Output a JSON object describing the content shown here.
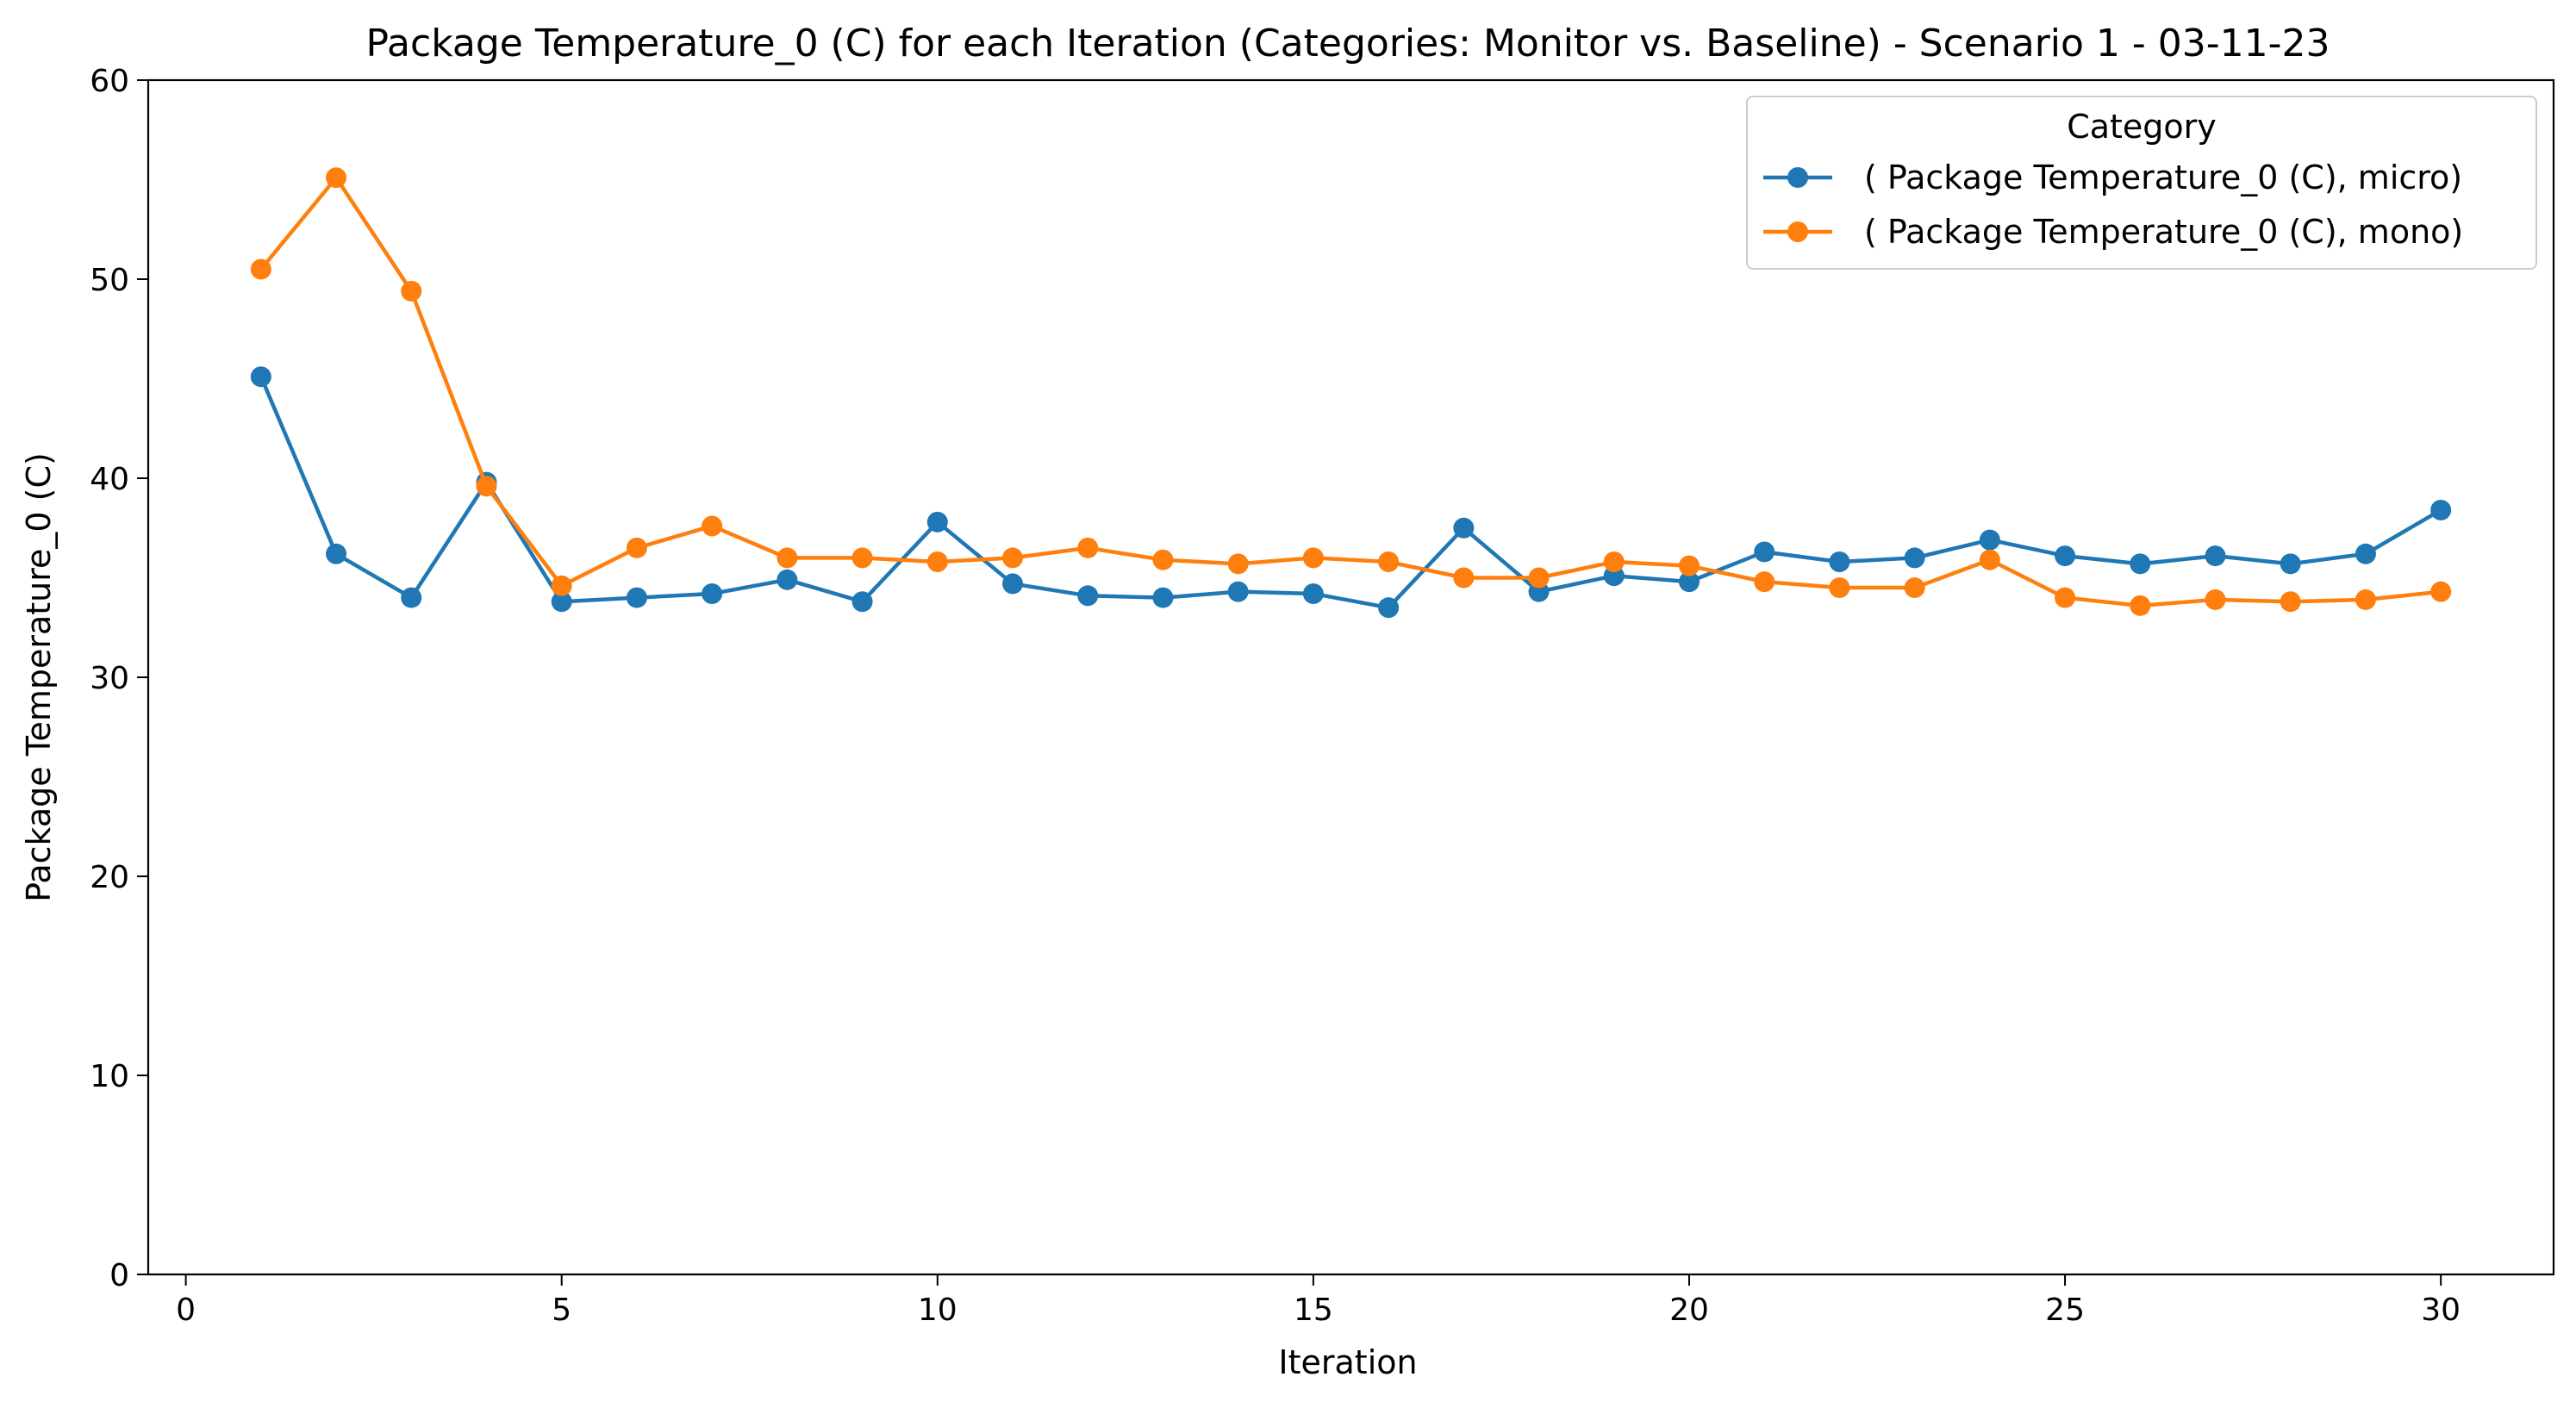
{
  "chart_data": {
    "type": "line",
    "title": "Package Temperature_0 (C) for each Iteration (Categories: Monitor vs. Baseline) - Scenario 1 - 03-11-23",
    "xlabel": "Iteration",
    "ylabel": "Package Temperature_0 (C)",
    "xlim": [
      -0.5,
      31.5
    ],
    "ylim": [
      0,
      60
    ],
    "xticks": [
      0,
      5,
      10,
      15,
      20,
      25,
      30
    ],
    "yticks": [
      0,
      10,
      20,
      30,
      40,
      50,
      60
    ],
    "grid": false,
    "legend": {
      "title": "Category",
      "placement": "top-right"
    },
    "x": [
      1,
      2,
      3,
      4,
      5,
      6,
      7,
      8,
      9,
      10,
      11,
      12,
      13,
      14,
      15,
      16,
      17,
      18,
      19,
      20,
      21,
      22,
      23,
      24,
      25,
      26,
      27,
      28,
      29,
      30
    ],
    "series": [
      {
        "name": "( Package Temperature_0 (C), micro)",
        "color": "#1f77b4",
        "marker": "circle",
        "values": [
          45.1,
          36.2,
          34.0,
          39.8,
          33.8,
          34.0,
          34.2,
          34.9,
          33.8,
          37.8,
          34.7,
          34.1,
          34.0,
          34.3,
          34.2,
          33.5,
          37.5,
          34.3,
          35.1,
          34.8,
          36.3,
          35.8,
          36.0,
          36.9,
          36.1,
          35.7,
          36.1,
          35.7,
          36.2,
          38.4
        ]
      },
      {
        "name": "( Package Temperature_0 (C), mono)",
        "color": "#ff7f0e",
        "marker": "circle",
        "values": [
          50.5,
          55.1,
          49.4,
          39.6,
          34.6,
          36.5,
          37.6,
          36.0,
          36.0,
          35.8,
          36.0,
          36.5,
          35.9,
          35.7,
          36.0,
          35.8,
          35.0,
          35.0,
          35.8,
          35.6,
          34.8,
          34.5,
          34.5,
          35.9,
          34.0,
          33.6,
          33.9,
          33.8,
          33.9,
          34.3
        ]
      }
    ]
  }
}
